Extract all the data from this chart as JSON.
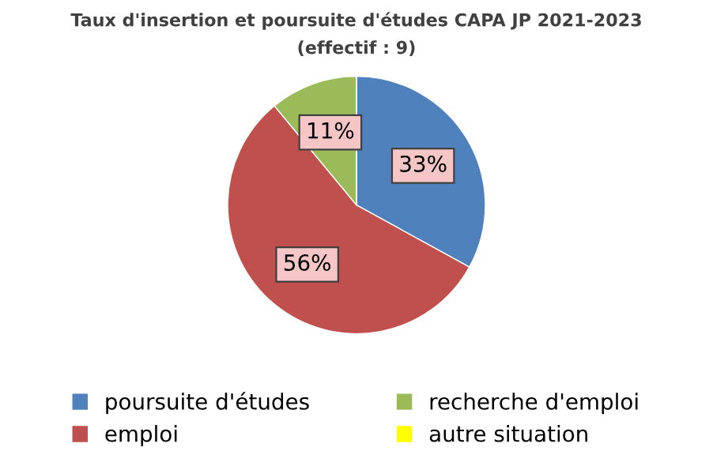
{
  "chart_data": {
    "type": "pie",
    "title": "Taux d'insertion et poursuite d'études CAPA JP 2021-2023",
    "subtitle": "(effectif : 9)",
    "categories": [
      "poursuite d'études",
      "emploi",
      "recherche d'emploi",
      "autre situation"
    ],
    "values": [
      33,
      56,
      11,
      0
    ],
    "colors": [
      "#4f81bd",
      "#c0504d",
      "#9bbb59",
      "#ffff00"
    ],
    "value_labels": [
      "33%",
      "56%",
      "11%",
      null
    ],
    "legend": "bottom"
  }
}
